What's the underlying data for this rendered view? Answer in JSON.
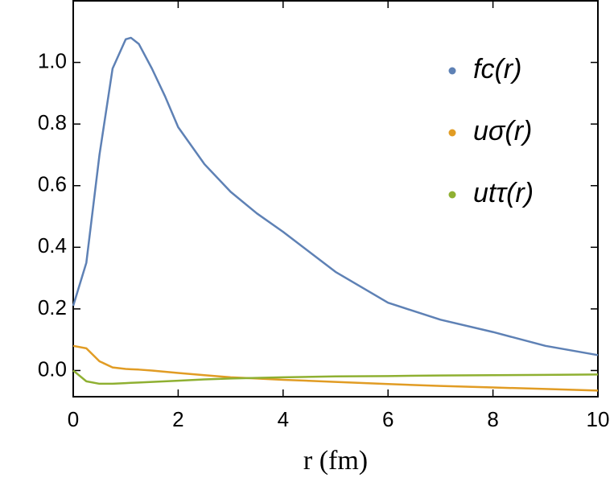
{
  "chart_data": {
    "type": "line",
    "x_label": "r (fm)",
    "x": [
      0,
      0.25,
      0.5,
      0.75,
      1,
      1.1,
      1.25,
      1.5,
      1.75,
      2,
      2.5,
      3,
      3.5,
      4,
      5,
      6,
      7,
      8,
      9,
      10
    ],
    "series": [
      {
        "name": "fc(r)",
        "color": "#5e81b5",
        "values": [
          0.21,
          0.35,
          0.7,
          0.98,
          1.075,
          1.08,
          1.06,
          0.98,
          0.89,
          0.79,
          0.67,
          0.58,
          0.51,
          0.45,
          0.32,
          0.22,
          0.165,
          0.125,
          0.08,
          0.05
        ]
      },
      {
        "name": "uσ(r)",
        "color": "#e19c24",
        "values": [
          0.08,
          0.072,
          0.03,
          0.01,
          0.005,
          0.004,
          0.003,
          0.0,
          -0.004,
          -0.008,
          -0.015,
          -0.022,
          -0.026,
          -0.03,
          -0.037,
          -0.044,
          -0.05,
          -0.055,
          -0.06,
          -0.065
        ]
      },
      {
        "name": "utτ(r)",
        "color": "#8fb032",
        "values": [
          0.0,
          -0.035,
          -0.043,
          -0.043,
          -0.041,
          -0.04,
          -0.039,
          -0.037,
          -0.035,
          -0.033,
          -0.029,
          -0.026,
          -0.024,
          -0.022,
          -0.019,
          -0.018,
          -0.016,
          -0.015,
          -0.014,
          -0.013
        ]
      }
    ],
    "xlim": [
      0,
      10
    ],
    "ylim": [
      -0.085,
      1.2
    ],
    "xticks": [
      0,
      2,
      4,
      6,
      8,
      10
    ],
    "yticks": [
      {
        "value": 0,
        "label": "0.0"
      },
      0.2,
      0.4,
      0.6,
      0.8,
      {
        "value": 1,
        "label": "1.0"
      }
    ],
    "legend": "upper right"
  }
}
